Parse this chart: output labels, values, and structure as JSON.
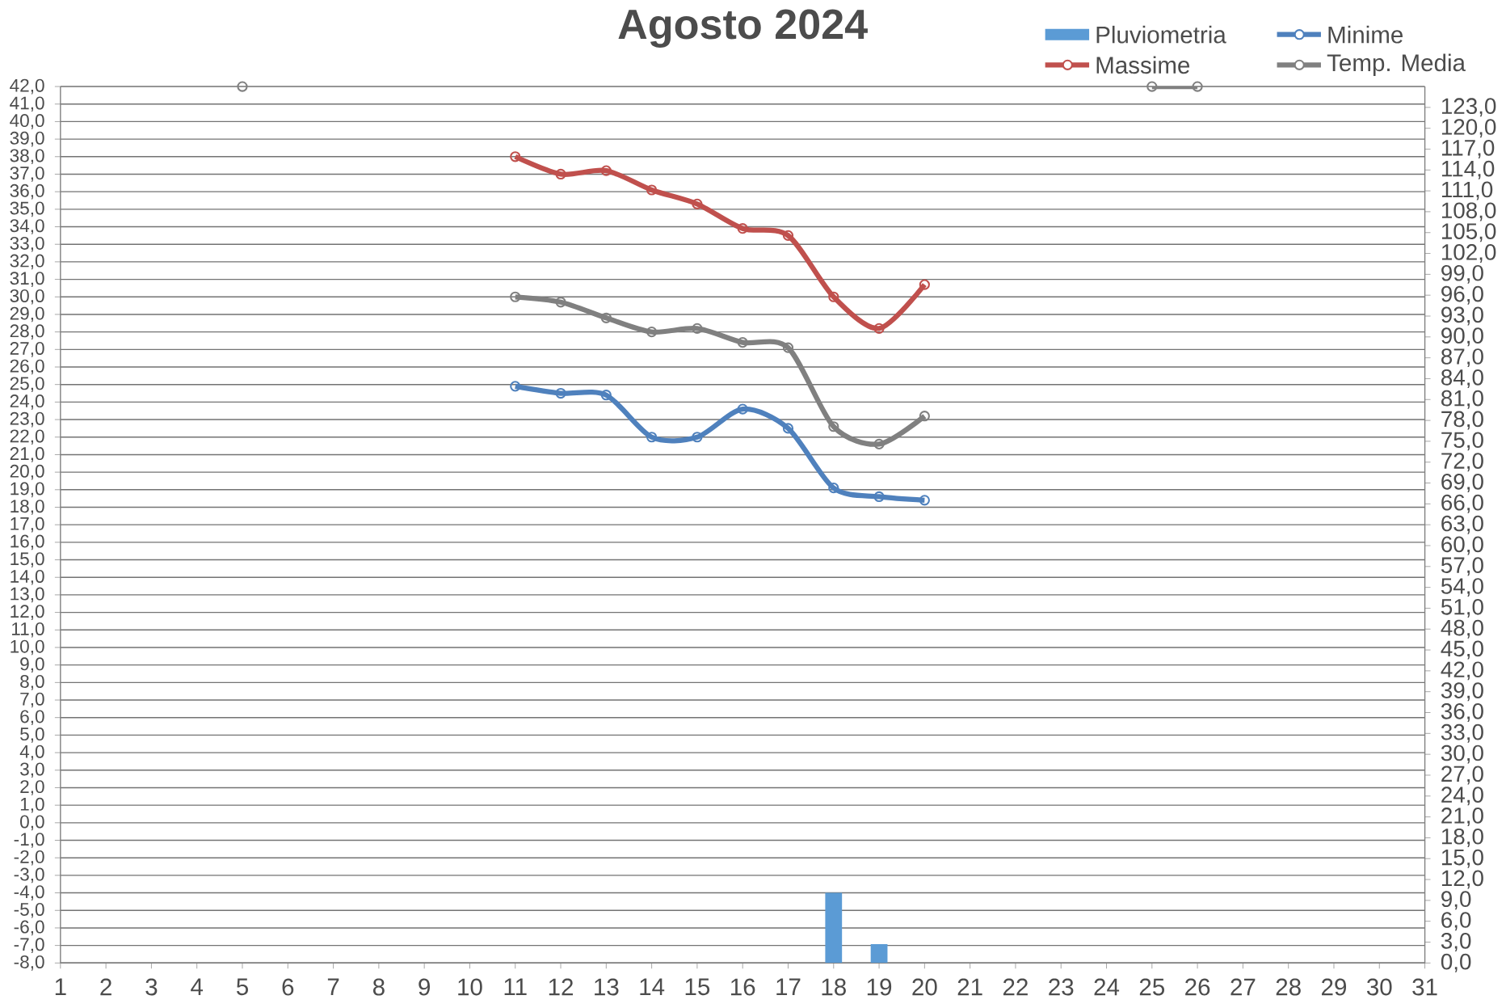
{
  "chart_data": {
    "type": "line",
    "title": "Agosto 2024",
    "categories": [
      "1",
      "2",
      "3",
      "4",
      "5",
      "6",
      "7",
      "8",
      "9",
      "10",
      "11",
      "12",
      "13",
      "14",
      "15",
      "16",
      "17",
      "18",
      "19",
      "20",
      "21",
      "22",
      "23",
      "24",
      "25",
      "26",
      "27",
      "28",
      "29",
      "30",
      "31"
    ],
    "series": [
      {
        "name": "Pluviometria",
        "type": "bar",
        "axis": "y2",
        "color": "#5b9bd5",
        "values": [
          null,
          null,
          null,
          null,
          null,
          null,
          null,
          null,
          null,
          null,
          null,
          null,
          null,
          null,
          null,
          null,
          null,
          10.1,
          2.7,
          null,
          null,
          null,
          null,
          null,
          null,
          null,
          null,
          null,
          null,
          null,
          null
        ]
      },
      {
        "name": "Minime",
        "color": "#4f81bd",
        "values": [
          null,
          null,
          null,
          null,
          null,
          null,
          null,
          null,
          null,
          null,
          24.9,
          24.5,
          24.4,
          22.0,
          22.0,
          23.6,
          22.5,
          19.1,
          18.6,
          18.4,
          null,
          null,
          null,
          null,
          null,
          null,
          null,
          null,
          null,
          null,
          null
        ]
      },
      {
        "name": "Massime",
        "color": "#c0504d",
        "values": [
          null,
          null,
          null,
          null,
          null,
          null,
          null,
          null,
          null,
          null,
          38.0,
          37.0,
          37.2,
          36.1,
          35.3,
          33.9,
          33.5,
          30.0,
          28.2,
          30.7,
          null,
          null,
          null,
          null,
          null,
          null,
          null,
          null,
          null,
          null,
          null
        ]
      },
      {
        "name": "Temp. Media",
        "color": "#808080",
        "values": [
          null,
          null,
          null,
          null,
          42,
          null,
          null,
          null,
          null,
          null,
          30.0,
          29.7,
          28.8,
          28.0,
          28.2,
          27.4,
          27.1,
          22.6,
          21.6,
          23.2,
          null,
          null,
          null,
          null,
          42,
          42,
          null,
          null,
          null,
          null,
          null
        ]
      }
    ],
    "ylim": [
      -8,
      42
    ],
    "yticks": [
      {
        "value": -8,
        "label": "-8,0"
      },
      {
        "value": -7,
        "label": "-7,0"
      },
      {
        "value": -6,
        "label": "-6,0"
      },
      {
        "value": -5,
        "label": "-5,0"
      },
      {
        "value": -4,
        "label": "-4,0"
      },
      {
        "value": -3,
        "label": "-3,0"
      },
      {
        "value": -2,
        "label": "-2,0"
      },
      {
        "value": -1,
        "label": "-1,0"
      },
      {
        "value": 0,
        "label": "0,0"
      },
      {
        "value": 1,
        "label": "1,0"
      },
      {
        "value": 2,
        "label": "2,0"
      },
      {
        "value": 3,
        "label": "3,0"
      },
      {
        "value": 4,
        "label": "4,0"
      },
      {
        "value": 5,
        "label": "5,0"
      },
      {
        "value": 6,
        "label": "6,0"
      },
      {
        "value": 7,
        "label": "7,0"
      },
      {
        "value": 8,
        "label": "8,0"
      },
      {
        "value": 9,
        "label": "9,0"
      },
      {
        "value": 10,
        "label": "10,0"
      },
      {
        "value": 11,
        "label": "11,0"
      },
      {
        "value": 12,
        "label": "12,0"
      },
      {
        "value": 13,
        "label": "13,0"
      },
      {
        "value": 14,
        "label": "14,0"
      },
      {
        "value": 15,
        "label": "15,0"
      },
      {
        "value": 16,
        "label": "16,0"
      },
      {
        "value": 17,
        "label": "17,0"
      },
      {
        "value": 18,
        "label": "18,0"
      },
      {
        "value": 19,
        "label": "19,0"
      },
      {
        "value": 20,
        "label": "20,0"
      },
      {
        "value": 21,
        "label": "21,0"
      },
      {
        "value": 22,
        "label": "22,0"
      },
      {
        "value": 23,
        "label": "23,0"
      },
      {
        "value": 24,
        "label": "24,0"
      },
      {
        "value": 25,
        "label": "25,0"
      },
      {
        "value": 26,
        "label": "26,0"
      },
      {
        "value": 27,
        "label": "27,0"
      },
      {
        "value": 28,
        "label": "28,0"
      },
      {
        "value": 29,
        "label": "29,0"
      },
      {
        "value": 30,
        "label": "30,0"
      },
      {
        "value": 31,
        "label": "31,0"
      },
      {
        "value": 32,
        "label": "32,0"
      },
      {
        "value": 33,
        "label": "33,0"
      },
      {
        "value": 34,
        "label": "34,0"
      },
      {
        "value": 35,
        "label": "35,0"
      },
      {
        "value": 36,
        "label": "36,0"
      },
      {
        "value": 37,
        "label": "37,0"
      },
      {
        "value": 38,
        "label": "38,0"
      },
      {
        "value": 39,
        "label": "39,0"
      },
      {
        "value": 40,
        "label": "40,0"
      },
      {
        "value": 41,
        "label": "41,0"
      },
      {
        "value": 42,
        "label": "42,0"
      }
    ],
    "y2lim": [
      0,
      126
    ],
    "y2ticks": [
      {
        "value": 0,
        "label": "0,0"
      },
      {
        "value": 3,
        "label": "3,0"
      },
      {
        "value": 6,
        "label": "6,0"
      },
      {
        "value": 9,
        "label": "9,0"
      },
      {
        "value": 12,
        "label": "12,0"
      },
      {
        "value": 15,
        "label": "15,0"
      },
      {
        "value": 18,
        "label": "18,0"
      },
      {
        "value": 21,
        "label": "21,0"
      },
      {
        "value": 24,
        "label": "24,0"
      },
      {
        "value": 27,
        "label": "27,0"
      },
      {
        "value": 30,
        "label": "30,0"
      },
      {
        "value": 33,
        "label": "33,0"
      },
      {
        "value": 36,
        "label": "36,0"
      },
      {
        "value": 39,
        "label": "39,0"
      },
      {
        "value": 42,
        "label": "42,0"
      },
      {
        "value": 45,
        "label": "45,0"
      },
      {
        "value": 48,
        "label": "48,0"
      },
      {
        "value": 51,
        "label": "51,0"
      },
      {
        "value": 54,
        "label": "54,0"
      },
      {
        "value": 57,
        "label": "57,0"
      },
      {
        "value": 60,
        "label": "60,0"
      },
      {
        "value": 63,
        "label": "63,0"
      },
      {
        "value": 66,
        "label": "66,0"
      },
      {
        "value": 69,
        "label": "69,0"
      },
      {
        "value": 72,
        "label": "72,0"
      },
      {
        "value": 75,
        "label": "75,0"
      },
      {
        "value": 78,
        "label": "78,0"
      },
      {
        "value": 81,
        "label": "81,0"
      },
      {
        "value": 84,
        "label": "84,0"
      },
      {
        "value": 87,
        "label": "87,0"
      },
      {
        "value": 90,
        "label": "90,0"
      },
      {
        "value": 93,
        "label": "93,0"
      },
      {
        "value": 96,
        "label": "96,0"
      },
      {
        "value": 99,
        "label": "99,0"
      },
      {
        "value": 102,
        "label": "102,0"
      },
      {
        "value": 105,
        "label": "105,0"
      },
      {
        "value": 108,
        "label": "108,0"
      },
      {
        "value": 111,
        "label": "111,0"
      },
      {
        "value": 114,
        "label": "114,0"
      },
      {
        "value": 117,
        "label": "117,0"
      },
      {
        "value": 120,
        "label": "120,0"
      },
      {
        "value": 123,
        "label": "123,0"
      }
    ],
    "grid": "y",
    "legend": "top right",
    "marker": "circle"
  }
}
